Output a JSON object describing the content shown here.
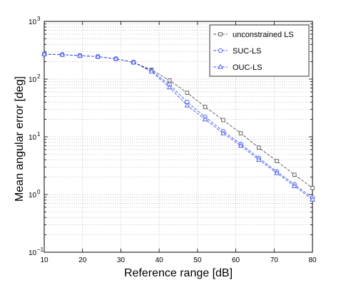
{
  "chart_data": {
    "type": "line",
    "xlabel": "Reference range [dB]",
    "ylabel": "Mean angular error [deg]",
    "xlim": [
      10,
      80
    ],
    "ylim": [
      0.1,
      1000
    ],
    "yscale": "log",
    "grid": true,
    "legend_position": "top-right",
    "x_ticks": [
      10,
      20,
      30,
      40,
      50,
      60,
      70,
      80
    ],
    "y_ticks": [
      {
        "value": 0.1,
        "base": "10",
        "exp": "−1"
      },
      {
        "value": 1,
        "base": "10",
        "exp": "0"
      },
      {
        "value": 10,
        "base": "10",
        "exp": "1"
      },
      {
        "value": 100,
        "base": "10",
        "exp": "2"
      },
      {
        "value": 1000,
        "base": "10",
        "exp": "3"
      }
    ],
    "series": [
      {
        "name": "unconstrained LS",
        "color": "#555555",
        "marker": "square",
        "x": [
          10,
          14.7,
          19.3,
          24,
          28.7,
          33.3,
          38,
          42.7,
          47.3,
          52,
          56.7,
          61.3,
          66,
          70.7,
          75.3,
          80
        ],
        "y": [
          270,
          265,
          255,
          245,
          225,
          195,
          145,
          95,
          58,
          33,
          19.5,
          11.5,
          6.5,
          3.8,
          2.2,
          1.3
        ]
      },
      {
        "name": "SUC-LS",
        "color": "#4455ee",
        "marker": "circle",
        "x": [
          10,
          14.7,
          19.3,
          24,
          28.7,
          33.3,
          38,
          42.7,
          47.3,
          52,
          56.7,
          61.3,
          66,
          70.7,
          75.3,
          80
        ],
        "y": [
          270,
          265,
          255,
          245,
          225,
          195,
          140,
          80,
          40,
          22,
          12.5,
          7.5,
          4.3,
          2.5,
          1.5,
          0.88
        ]
      },
      {
        "name": "OUC-LS",
        "color": "#4455ee",
        "marker": "triangle",
        "x": [
          10,
          14.7,
          19.3,
          24,
          28.7,
          33.3,
          38,
          42.7,
          47.3,
          52,
          56.7,
          61.3,
          66,
          70.7,
          75.3,
          80
        ],
        "y": [
          270,
          265,
          255,
          245,
          225,
          195,
          135,
          72,
          35,
          20,
          11.5,
          7,
          4,
          2.35,
          1.4,
          0.82
        ]
      }
    ]
  }
}
